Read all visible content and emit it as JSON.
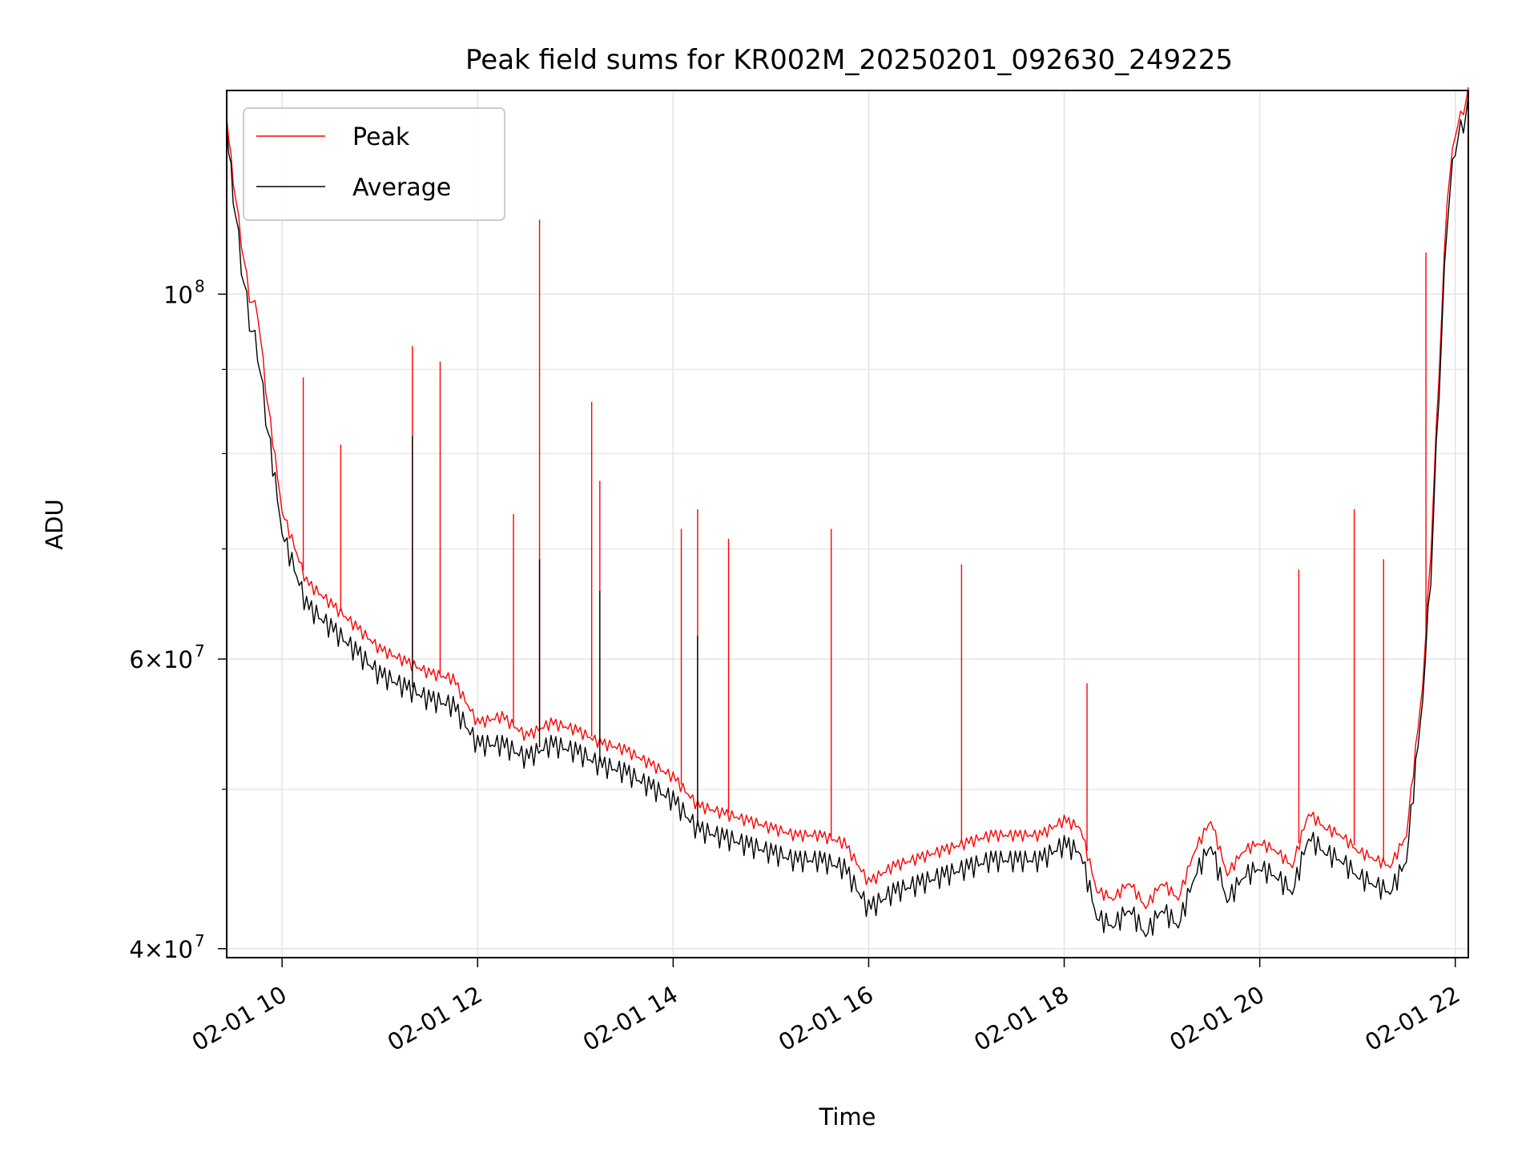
{
  "chart_data": {
    "type": "line",
    "title": "Peak field sums for KR002M_20250201_092630_249225",
    "xlabel": "Time",
    "ylabel": "ADU",
    "yscale": "log",
    "grid": true,
    "legend_position": "upper-left",
    "xlim": [
      "2025-02-01 09:26",
      "2025-02-01 22:08"
    ],
    "ylim": [
      39500000,
      133000000
    ],
    "x_ticks": [
      {
        "t": "2025-02-01 10:00",
        "label": "02-01 10"
      },
      {
        "t": "2025-02-01 12:00",
        "label": "02-01 12"
      },
      {
        "t": "2025-02-01 14:00",
        "label": "02-01 14"
      },
      {
        "t": "2025-02-01 16:00",
        "label": "02-01 16"
      },
      {
        "t": "2025-02-01 18:00",
        "label": "02-01 18"
      },
      {
        "t": "2025-02-01 20:00",
        "label": "02-01 20"
      },
      {
        "t": "2025-02-01 22:00",
        "label": "02-01 22"
      }
    ],
    "y_ticks_major": [
      {
        "value": 100000000,
        "base": "10",
        "exp": "8"
      },
      {
        "value": 60000000,
        "base": "6×10",
        "exp": "7"
      },
      {
        "value": 40000000,
        "base": "4×10",
        "exp": "7"
      }
    ],
    "y_ticks_minor": [
      90000000,
      80000000,
      70000000,
      50000000
    ],
    "series": [
      {
        "name": "Peak",
        "color": "#ff0000",
        "x": [
          "09:26",
          "09:30",
          "09:35",
          "09:40",
          "09:45",
          "09:50",
          "10:00",
          "10:15",
          "10:30",
          "10:45",
          "11:00",
          "11:15",
          "11:30",
          "11:45",
          "12:00",
          "12:15",
          "12:30",
          "12:45",
          "13:00",
          "13:15",
          "13:30",
          "13:45",
          "14:00",
          "14:15",
          "14:30",
          "14:45",
          "15:00",
          "15:15",
          "15:30",
          "15:45",
          "16:00",
          "16:15",
          "16:30",
          "16:45",
          "17:00",
          "17:15",
          "17:30",
          "17:45",
          "18:00",
          "18:10",
          "18:20",
          "18:30",
          "18:40",
          "18:50",
          "19:00",
          "19:10",
          "19:20",
          "19:30",
          "19:40",
          "19:50",
          "20:00",
          "20:10",
          "20:20",
          "20:30",
          "20:40",
          "20:50",
          "21:00",
          "21:10",
          "21:20",
          "21:30",
          "21:40",
          "21:45",
          "21:50",
          "21:55",
          "22:00",
          "22:05",
          "22:08"
        ],
        "values": [
          128000000,
          118000000,
          108000000,
          100000000,
          98000000,
          88000000,
          74000000,
          67000000,
          65000000,
          63000000,
          61000000,
          60000000,
          59000000,
          58500000,
          55000000,
          55500000,
          54000000,
          55000000,
          54500000,
          53500000,
          53000000,
          52000000,
          51000000,
          49000000,
          48500000,
          48000000,
          47500000,
          47000000,
          47000000,
          46500000,
          44000000,
          45000000,
          45500000,
          46000000,
          46500000,
          47000000,
          47000000,
          47000000,
          48000000,
          47500000,
          43500000,
          43000000,
          44000000,
          42500000,
          44000000,
          43000000,
          46000000,
          48000000,
          44500000,
          46000000,
          46500000,
          46000000,
          45000000,
          48500000,
          47500000,
          47000000,
          46000000,
          45500000,
          45000000,
          47000000,
          58000000,
          70000000,
          90000000,
          115000000,
          126000000,
          130000000,
          133000000
        ],
        "spikes": [
          {
            "x": "10:13",
            "value": 89000000
          },
          {
            "x": "10:36",
            "value": 81000000
          },
          {
            "x": "11:20",
            "value": 93000000
          },
          {
            "x": "11:37",
            "value": 91000000
          },
          {
            "x": "12:22",
            "value": 73500000
          },
          {
            "x": "12:38",
            "value": 111000000
          },
          {
            "x": "13:10",
            "value": 86000000
          },
          {
            "x": "13:15",
            "value": 77000000
          },
          {
            "x": "14:05",
            "value": 72000000
          },
          {
            "x": "14:15",
            "value": 74000000
          },
          {
            "x": "14:34",
            "value": 71000000
          },
          {
            "x": "15:37",
            "value": 72000000
          },
          {
            "x": "16:57",
            "value": 68500000
          },
          {
            "x": "18:14",
            "value": 58000000
          },
          {
            "x": "20:24",
            "value": 68000000
          },
          {
            "x": "20:58",
            "value": 74000000
          },
          {
            "x": "21:16",
            "value": 69000000
          },
          {
            "x": "21:42",
            "value": 106000000
          }
        ]
      },
      {
        "name": "Average",
        "color": "#000000",
        "x": [
          "09:26",
          "09:30",
          "09:35",
          "09:40",
          "09:45",
          "09:50",
          "10:00",
          "10:15",
          "10:30",
          "10:45",
          "11:00",
          "11:15",
          "11:30",
          "11:45",
          "12:00",
          "12:15",
          "12:30",
          "12:45",
          "13:00",
          "13:15",
          "13:30",
          "13:45",
          "14:00",
          "14:15",
          "14:30",
          "14:45",
          "15:00",
          "15:15",
          "15:30",
          "15:45",
          "16:00",
          "16:15",
          "16:30",
          "16:45",
          "17:00",
          "17:15",
          "17:30",
          "17:45",
          "18:00",
          "18:10",
          "18:20",
          "18:30",
          "18:40",
          "18:50",
          "19:00",
          "19:10",
          "19:20",
          "19:30",
          "19:40",
          "19:50",
          "20:00",
          "20:10",
          "20:20",
          "20:30",
          "20:40",
          "20:50",
          "21:00",
          "21:10",
          "21:20",
          "21:30",
          "21:40",
          "21:45",
          "21:50",
          "21:55",
          "22:00",
          "22:05",
          "22:08"
        ],
        "values": [
          126000000,
          116000000,
          105000000,
          97000000,
          93000000,
          85000000,
          72000000,
          65000000,
          63000000,
          61000000,
          59000000,
          58000000,
          57000000,
          56500000,
          53500000,
          53500000,
          52500000,
          53500000,
          53000000,
          52000000,
          51500000,
          50500000,
          49500000,
          47500000,
          47000000,
          46500000,
          46000000,
          45500000,
          45500000,
          45000000,
          42500000,
          43500000,
          44000000,
          44500000,
          45000000,
          45500000,
          45500000,
          45500000,
          46500000,
          46000000,
          42000000,
          41500000,
          42500000,
          41000000,
          42500000,
          41500000,
          44500000,
          46500000,
          43000000,
          44500000,
          45000000,
          44500000,
          43500000,
          47000000,
          46000000,
          45500000,
          44500000,
          44000000,
          43500000,
          45500000,
          57000000,
          68000000,
          88000000,
          112000000,
          124000000,
          128000000,
          131000000
        ],
        "spikes": [
          {
            "x": "11:20",
            "value": 82000000
          },
          {
            "x": "12:38",
            "value": 69000000
          },
          {
            "x": "13:15",
            "value": 66000000
          },
          {
            "x": "14:15",
            "value": 62000000
          }
        ]
      }
    ]
  }
}
